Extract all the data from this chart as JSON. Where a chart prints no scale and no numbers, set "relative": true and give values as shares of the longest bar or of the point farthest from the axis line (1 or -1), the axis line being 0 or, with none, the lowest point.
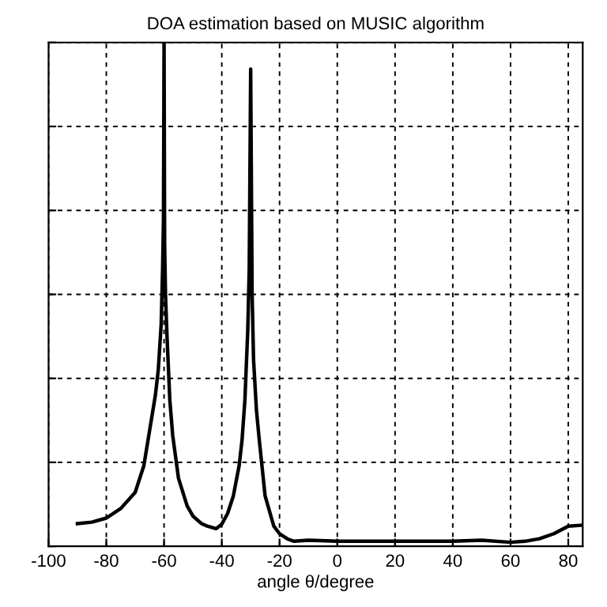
{
  "chart_data": {
    "type": "line",
    "title": "DOA estimation based on MUSIC algorithm",
    "xlabel": "angle θ/degree",
    "relative": true,
    "xlim": [
      -100,
      85
    ],
    "xticks": [
      -100,
      -80,
      -60,
      -40,
      -20,
      0,
      20,
      40,
      60,
      80
    ],
    "grid": true,
    "tick_labels": "x",
    "marker": "none",
    "line_style": "solid",
    "series": [
      {
        "color": "#000000",
        "x": [
          -90,
          -85,
          -80,
          -75,
          -70,
          -67,
          -65,
          -63,
          -62,
          -61,
          -60.5,
          -60.2,
          -60,
          -59.8,
          -59.5,
          -59,
          -58,
          -57,
          -55,
          -52,
          -50,
          -47,
          -45,
          -42,
          -40,
          -38,
          -36,
          -34,
          -33,
          -32,
          -31,
          -30.5,
          -30,
          -29.5,
          -29,
          -28,
          -27,
          -25,
          -22,
          -20,
          -17,
          -15,
          -10,
          0,
          10,
          20,
          30,
          40,
          50,
          60,
          65,
          70,
          75,
          80,
          85
        ],
        "values": [
          0.045,
          0.048,
          0.056,
          0.075,
          0.107,
          0.16,
          0.23,
          0.3,
          0.35,
          0.44,
          0.55,
          0.65,
          1.0,
          0.6,
          0.5,
          0.42,
          0.29,
          0.22,
          0.135,
          0.08,
          0.06,
          0.045,
          0.04,
          0.035,
          0.044,
          0.065,
          0.1,
          0.16,
          0.21,
          0.29,
          0.43,
          0.55,
          0.947,
          0.5,
          0.37,
          0.27,
          0.21,
          0.1,
          0.04,
          0.025,
          0.014,
          0.01,
          0.012,
          0.01,
          0.01,
          0.01,
          0.01,
          0.01,
          0.012,
          0.008,
          0.01,
          0.015,
          0.025,
          0.04,
          0.042
        ]
      }
    ]
  }
}
